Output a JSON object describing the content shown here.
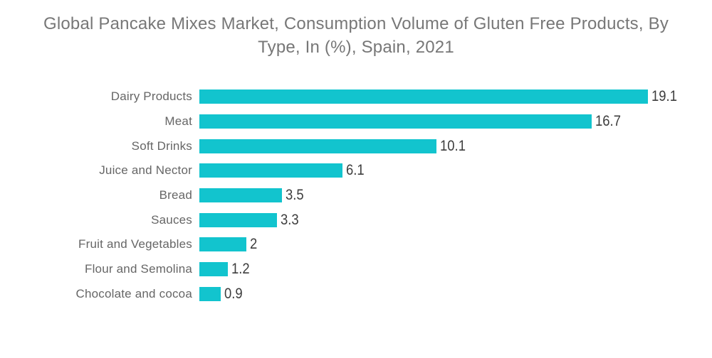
{
  "chart_data": {
    "type": "bar",
    "orientation": "horizontal",
    "title": "Global Pancake Mixes Market, Consumption Volume of Gluten Free Products, By Type, In (%), Spain, 2021",
    "title_lines": [
      "Global Pancake Mixes Market, Consumption Volume of Gluten Free Products, By",
      "Type, In (%), Spain, 2021"
    ],
    "categories": [
      "Dairy Products",
      "Meat",
      "Soft Drinks",
      "Juice and Nector",
      "Bread",
      "Sauces",
      "Fruit and Vegetables",
      "Flour and Semolina",
      "Chocolate and cocoa"
    ],
    "values": [
      19.1,
      16.7,
      10.1,
      6.1,
      3.5,
      3.3,
      2,
      1.2,
      0.9
    ],
    "value_labels": [
      "19.1",
      "16.7",
      "10.1",
      "6.1",
      "3.5",
      "3.3",
      "2",
      "1.2",
      "0.9"
    ],
    "xlabel": "",
    "ylabel": "",
    "xlim": [
      0,
      19.1
    ],
    "grid": false,
    "legend": false,
    "colors": {
      "bar": "#12C4CE",
      "title_text": "#777777",
      "category_text": "#666666",
      "value_text": "#3D3D3D",
      "background": "#FFFFFF"
    }
  }
}
